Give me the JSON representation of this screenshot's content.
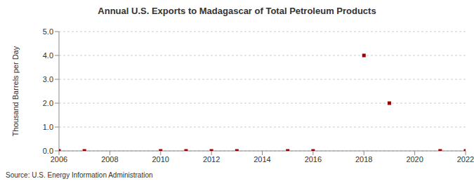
{
  "chart_data": {
    "type": "scatter",
    "title": "Annual U.S. Exports to Madagascar of Total Petroleum Products",
    "y_label": "Thousand Barrels per Day",
    "annotations": [
      "Source: U.S. Energy Information Administration"
    ],
    "x": [
      2006,
      2007,
      2010,
      2011,
      2012,
      2013,
      2015,
      2016,
      2018,
      2019,
      2021,
      2022
    ],
    "values": [
      0,
      0,
      0,
      0,
      0,
      0,
      0,
      0,
      4,
      2,
      0,
      0
    ],
    "color": "#990000",
    "marker": "square",
    "xlim": [
      2006,
      2022
    ],
    "xticks": [
      2006,
      2008,
      2010,
      2012,
      2014,
      2016,
      2018,
      2020,
      2022
    ],
    "ylim": [
      0,
      5
    ],
    "yticks": [
      {
        "value": 0,
        "label": "0.0"
      },
      {
        "value": 1,
        "label": "1.0"
      },
      {
        "value": 2,
        "label": "2.0"
      },
      {
        "value": 3,
        "label": "3.0"
      },
      {
        "value": 4,
        "label": "4.0"
      },
      {
        "value": 5,
        "label": "5.0"
      }
    ],
    "grid": true
  }
}
